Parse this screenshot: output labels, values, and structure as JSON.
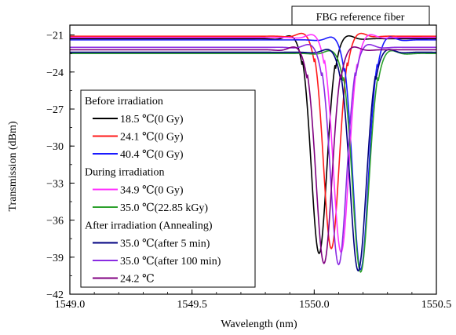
{
  "chart_data": {
    "type": "line",
    "title": "FBG reference fiber",
    "xlabel": "Wavelength (nm)",
    "ylabel": "Transmission (dBm)",
    "xlim": [
      1549.0,
      1550.5
    ],
    "ylim": [
      -42,
      -20.2
    ],
    "xticks": [
      1549.0,
      1549.5,
      1550.0,
      1550.5
    ],
    "xtick_labels": [
      "1549.0",
      "1549.5",
      "1550.0",
      "1550.5"
    ],
    "yticks": [
      -21,
      -24,
      -27,
      -30,
      -33,
      -36,
      -39,
      -42
    ],
    "ytick_labels": [
      "−21",
      "−24",
      "−27",
      "−30",
      "−33",
      "−36",
      "−39",
      "−42"
    ],
    "grid": false,
    "legend_position": "left",
    "legend_groups": [
      {
        "heading": "Before irradiation",
        "entries": [
          0,
          1,
          2
        ]
      },
      {
        "heading": "During irradiation",
        "entries": [
          3,
          4
        ]
      },
      {
        "heading": "After irradiation (Annealing)",
        "entries": [
          5,
          6,
          7
        ]
      }
    ],
    "series": [
      {
        "name": "18.5 ℃(0 Gy)",
        "color": "#000000",
        "baseline": -21.3,
        "dip_center": 1550.02,
        "dip_depth": -38.7,
        "dip_width": 0.045
      },
      {
        "name": "24.1 ℃(0 Gy)",
        "color": "#ff1a1a",
        "baseline": -21.1,
        "dip_center": 1550.07,
        "dip_depth": -38.3,
        "dip_width": 0.045
      },
      {
        "name": "40.4 ℃(0 Gy)",
        "color": "#1a1aff",
        "baseline": -21.4,
        "dip_center": 1550.19,
        "dip_depth": -40.0,
        "dip_width": 0.045
      },
      {
        "name": "34.9 ℃(0 Gy)",
        "color": "#ff33ff",
        "baseline": -21.2,
        "dip_center": 1550.11,
        "dip_depth": -38.6,
        "dip_width": 0.045
      },
      {
        "name": "35.0 ℃(22.85 kGy)",
        "color": "#2ca02c",
        "baseline": -22.5,
        "dip_center": 1550.19,
        "dip_depth": -40.2,
        "dip_width": 0.047
      },
      {
        "name": "35.0 ℃(after 5 min)",
        "color": "#000080",
        "baseline": -22.4,
        "dip_center": 1550.18,
        "dip_depth": -40.1,
        "dip_width": 0.047
      },
      {
        "name": "35.0 ℃(after 100 min)",
        "color": "#8a2be2",
        "baseline": -22.0,
        "dip_center": 1550.1,
        "dip_depth": -39.6,
        "dip_width": 0.046
      },
      {
        "name": "24.2 ℃",
        "color": "#800080",
        "baseline": -22.2,
        "dip_center": 1550.04,
        "dip_depth": -39.5,
        "dip_width": 0.046
      }
    ]
  }
}
